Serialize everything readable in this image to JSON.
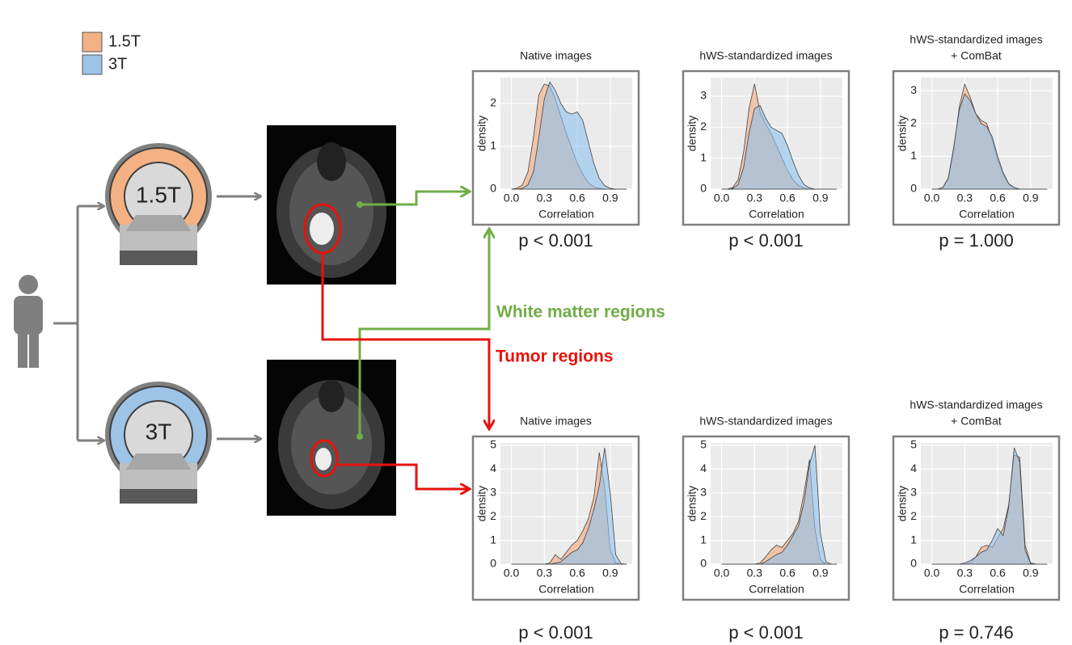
{
  "scanners": [
    "1.5T",
    "3T"
  ],
  "region_labels": {
    "white_matter": "White matter regions",
    "tumor": "Tumor regions"
  },
  "chart_data": [
    {
      "type": "area",
      "title": "Native images",
      "xlabel": "Correlation",
      "ylabel": "density",
      "annotation": "p < 0.001",
      "x": [
        0,
        0.05,
        0.1,
        0.15,
        0.2,
        0.25,
        0.3,
        0.35,
        0.4,
        0.45,
        0.5,
        0.55,
        0.6,
        0.65,
        0.7,
        0.75,
        0.8,
        0.85,
        0.9,
        0.95,
        1.0,
        1.05
      ],
      "xlim": [
        -0.1,
        1.1
      ],
      "xticks": [
        {
          "value": 0,
          "label": "0.0"
        },
        0.3,
        0.6,
        0.9
      ],
      "ylim": [
        0,
        2.6
      ],
      "yticks": [
        0,
        1,
        2
      ],
      "series": [
        {
          "name": "1.5T",
          "color": "#f4a77c",
          "values": [
            0,
            0.02,
            0.1,
            0.4,
            1.2,
            2.2,
            2.45,
            2.4,
            2.1,
            1.7,
            1.3,
            0.95,
            0.6,
            0.35,
            0.15,
            0.05,
            0.02,
            0,
            0,
            0,
            0,
            0
          ]
        },
        {
          "name": "3T",
          "color": "#8ec1ee",
          "values": [
            0,
            0,
            0.02,
            0.1,
            0.4,
            1.2,
            2.1,
            2.5,
            2.3,
            2.0,
            1.8,
            1.75,
            1.8,
            1.6,
            1.1,
            0.6,
            0.25,
            0.08,
            0.02,
            0,
            0,
            0
          ]
        }
      ]
    },
    {
      "type": "area",
      "title": "hWS-standardized images",
      "xlabel": "Correlation",
      "ylabel": "density",
      "annotation": "p < 0.001",
      "x": [
        0,
        0.05,
        0.1,
        0.15,
        0.2,
        0.25,
        0.3,
        0.35,
        0.4,
        0.45,
        0.5,
        0.55,
        0.6,
        0.65,
        0.7,
        0.75,
        0.8,
        0.85,
        0.9,
        0.95,
        1.0,
        1.05
      ],
      "xlim": [
        -0.1,
        1.1
      ],
      "xticks": [
        {
          "value": 0,
          "label": "0.0"
        },
        0.3,
        0.6,
        0.9
      ],
      "ylim": [
        0,
        3.6
      ],
      "yticks": [
        0,
        1,
        2,
        3
      ],
      "series": [
        {
          "name": "1.5T",
          "color": "#f4a77c",
          "values": [
            0,
            0,
            0.05,
            0.3,
            1.2,
            2.6,
            3.4,
            2.5,
            2.1,
            1.8,
            1.4,
            1.0,
            0.6,
            0.3,
            0.12,
            0.04,
            0,
            0,
            0,
            0,
            0,
            0
          ]
        },
        {
          "name": "3T",
          "color": "#8ec1ee",
          "values": [
            0,
            0,
            0.02,
            0.15,
            0.7,
            1.8,
            2.6,
            2.7,
            2.3,
            2.0,
            1.9,
            1.8,
            1.4,
            0.9,
            0.45,
            0.15,
            0.04,
            0,
            0,
            0,
            0,
            0
          ]
        }
      ]
    },
    {
      "type": "area",
      "title": "hWS-standardized images",
      "subtitle": "+ ComBat",
      "xlabel": "Correlation",
      "ylabel": "density",
      "annotation": "p = 1.000",
      "x": [
        0,
        0.05,
        0.1,
        0.15,
        0.2,
        0.25,
        0.3,
        0.35,
        0.4,
        0.45,
        0.5,
        0.55,
        0.6,
        0.65,
        0.7,
        0.75,
        0.8,
        0.85,
        0.9,
        0.95,
        1.0,
        1.05
      ],
      "xlim": [
        -0.1,
        1.1
      ],
      "xticks": [
        {
          "value": 0,
          "label": "0.0"
        },
        0.3,
        0.6,
        0.9
      ],
      "ylim": [
        0,
        3.4
      ],
      "yticks": [
        0,
        1,
        2,
        3
      ],
      "series": [
        {
          "name": "1.5T",
          "color": "#f4a77c",
          "values": [
            0,
            0,
            0.05,
            0.3,
            1.2,
            2.5,
            3.2,
            2.8,
            2.3,
            2.1,
            2.0,
            1.5,
            0.9,
            0.45,
            0.15,
            0.04,
            0,
            0,
            0,
            0,
            0,
            0
          ]
        },
        {
          "name": "3T",
          "color": "#8ec1ee",
          "values": [
            0,
            0,
            0.05,
            0.35,
            1.3,
            2.4,
            2.9,
            2.7,
            2.3,
            2.0,
            1.9,
            1.6,
            1.0,
            0.5,
            0.17,
            0.05,
            0,
            0,
            0,
            0,
            0,
            0
          ]
        }
      ]
    },
    {
      "type": "area",
      "title": "Native images",
      "xlabel": "Correlation",
      "ylabel": "density",
      "annotation": "p < 0.001",
      "x": [
        0,
        0.05,
        0.1,
        0.15,
        0.2,
        0.25,
        0.3,
        0.35,
        0.4,
        0.45,
        0.5,
        0.55,
        0.6,
        0.65,
        0.7,
        0.75,
        0.8,
        0.85,
        0.9,
        0.95,
        1.0,
        1.05
      ],
      "xlim": [
        -0.1,
        1.1
      ],
      "xticks": [
        {
          "value": 0,
          "label": "0.0"
        },
        0.3,
        0.6,
        0.9
      ],
      "ylim": [
        0,
        5.1
      ],
      "yticks": [
        0,
        1,
        2,
        3,
        4,
        5
      ],
      "series": [
        {
          "name": "1.5T",
          "color": "#f4a77c",
          "values": [
            0,
            0,
            0,
            0,
            0,
            0,
            0,
            0.05,
            0.4,
            0.2,
            0.5,
            0.8,
            1.0,
            1.4,
            1.9,
            2.8,
            4.7,
            3.2,
            0.6,
            0.05,
            0,
            0
          ]
        },
        {
          "name": "3T",
          "color": "#8ec1ee",
          "values": [
            0,
            0,
            0,
            0,
            0,
            0,
            0,
            0,
            0.05,
            0.1,
            0.3,
            0.5,
            0.6,
            0.9,
            1.5,
            2.3,
            3.3,
            4.9,
            3.0,
            0.4,
            0.02,
            0
          ]
        }
      ]
    },
    {
      "type": "area",
      "title": "hWS-standardized images",
      "xlabel": "Correlation",
      "ylabel": "density",
      "annotation": "p < 0.001",
      "x": [
        0,
        0.05,
        0.1,
        0.15,
        0.2,
        0.25,
        0.3,
        0.35,
        0.4,
        0.45,
        0.5,
        0.55,
        0.6,
        0.65,
        0.7,
        0.75,
        0.8,
        0.85,
        0.9,
        0.95,
        1.0,
        1.05
      ],
      "xlim": [
        -0.1,
        1.1
      ],
      "xticks": [
        {
          "value": 0,
          "label": "0.0"
        },
        0.3,
        0.6,
        0.9
      ],
      "ylim": [
        0,
        5.1
      ],
      "yticks": [
        0,
        1,
        2,
        3,
        4,
        5
      ],
      "series": [
        {
          "name": "1.5T",
          "color": "#f4a77c",
          "values": [
            0,
            0,
            0,
            0,
            0,
            0,
            0,
            0.05,
            0.3,
            0.6,
            0.8,
            0.7,
            1.0,
            1.3,
            1.8,
            3.0,
            4.4,
            1.5,
            0.2,
            0,
            0,
            0
          ]
        },
        {
          "name": "3T",
          "color": "#8ec1ee",
          "values": [
            0,
            0,
            0,
            0,
            0,
            0,
            0,
            0,
            0.1,
            0.25,
            0.4,
            0.5,
            0.8,
            1.2,
            1.6,
            2.6,
            4.2,
            5.0,
            1.3,
            0.1,
            0,
            0
          ]
        }
      ]
    },
    {
      "type": "area",
      "title": "hWS-standardized images",
      "subtitle": "+ ComBat",
      "xlabel": "Correlation",
      "ylabel": "density",
      "annotation": "p = 0.746",
      "x": [
        0,
        0.05,
        0.1,
        0.15,
        0.2,
        0.25,
        0.3,
        0.35,
        0.4,
        0.45,
        0.5,
        0.55,
        0.6,
        0.65,
        0.7,
        0.75,
        0.8,
        0.85,
        0.9,
        0.95,
        1.0,
        1.05
      ],
      "xlim": [
        -0.1,
        1.1
      ],
      "xticks": [
        {
          "value": 0,
          "label": "0.0"
        },
        0.3,
        0.6,
        0.9
      ],
      "ylim": [
        0,
        5.1
      ],
      "yticks": [
        0,
        1,
        2,
        3,
        4,
        5
      ],
      "series": [
        {
          "name": "1.5T",
          "color": "#f4a77c",
          "values": [
            0,
            0,
            0,
            0,
            0,
            0,
            0,
            0.05,
            0.3,
            0.7,
            0.8,
            0.7,
            1.1,
            1.5,
            2.5,
            4.6,
            4.5,
            0.8,
            0.05,
            0,
            0,
            0
          ]
        },
        {
          "name": "3T",
          "color": "#8ec1ee",
          "values": [
            0,
            0,
            0,
            0,
            0,
            0,
            0.05,
            0.15,
            0.3,
            0.5,
            0.6,
            1.0,
            1.5,
            1.2,
            2.4,
            4.9,
            4.3,
            0.6,
            0.03,
            0,
            0,
            0
          ]
        }
      ]
    }
  ]
}
